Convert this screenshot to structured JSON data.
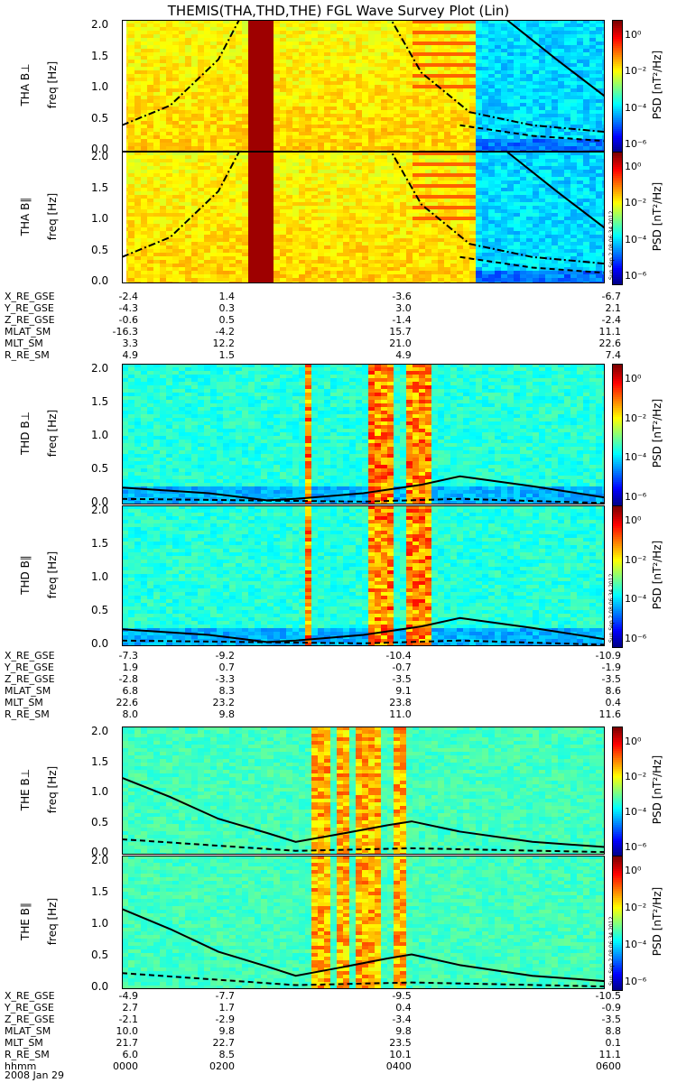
{
  "title": "THEMIS(THA,THD,THE) FGL Wave Survey Plot (Lin)",
  "yticks": [
    "2.0",
    "1.5",
    "1.0",
    "0.5",
    "0.0"
  ],
  "colorbar": {
    "ticks": [
      "10⁰",
      "10⁻²",
      "10⁻⁴",
      "10⁻⁶"
    ],
    "label": "PSD [nT²/Hz]"
  },
  "stamp": "Sun Sep  2 08:06:34 2012",
  "panels": [
    {
      "probe": "THA",
      "comp": "B⊥",
      "ylabel": "THA B⊥",
      "freq": "freq [Hz]"
    },
    {
      "probe": "THA",
      "comp": "B∥",
      "ylabel": "THA B∥",
      "freq": "freq [Hz]"
    },
    {
      "probe": "THD",
      "comp": "B⊥",
      "ylabel": "THD B⊥",
      "freq": "freq [Hz]"
    },
    {
      "probe": "THD",
      "comp": "B∥",
      "ylabel": "THD B∥",
      "freq": "freq [Hz]"
    },
    {
      "probe": "THE",
      "comp": "B⊥",
      "ylabel": "THE B⊥",
      "freq": "freq [Hz]"
    },
    {
      "probe": "THE",
      "comp": "B∥",
      "ylabel": "THE B∥",
      "freq": "freq [Hz]"
    }
  ],
  "ephemeris": [
    {
      "labels": [
        "X_RE_GSE",
        "Y_RE_GSE",
        "Z_RE_GSE",
        "MLAT_SM",
        "MLT_SM",
        "R_RE_SM"
      ],
      "cols": [
        [
          "-2.4",
          "-4.3",
          "-0.6",
          "-16.3",
          "3.3",
          "4.9"
        ],
        [
          "1.4",
          "0.3",
          "0.5",
          "-4.2",
          "12.2",
          "1.5"
        ],
        [
          "-3.6",
          "3.0",
          "-1.4",
          "15.7",
          "21.0",
          "4.9"
        ],
        [
          "-6.7",
          "2.1",
          "-2.4",
          "11.1",
          "22.6",
          "7.4"
        ]
      ]
    },
    {
      "labels": [
        "X_RE_GSE",
        "Y_RE_GSE",
        "Z_RE_GSE",
        "MLAT_SM",
        "MLT_SM",
        "R_RE_SM"
      ],
      "cols": [
        [
          "-7.3",
          "1.9",
          "-2.8",
          "6.8",
          "22.6",
          "8.0"
        ],
        [
          "-9.2",
          "0.7",
          "-3.3",
          "8.3",
          "23.2",
          "9.8"
        ],
        [
          "-10.4",
          "-0.7",
          "-3.5",
          "9.1",
          "23.8",
          "11.0"
        ],
        [
          "-10.9",
          "-1.9",
          "-3.5",
          "8.6",
          "0.4",
          "11.6"
        ]
      ]
    },
    {
      "labels": [
        "X_RE_GSE",
        "Y_RE_GSE",
        "Z_RE_GSE",
        "MLAT_SM",
        "MLT_SM",
        "R_RE_SM",
        "hhmm"
      ],
      "cols": [
        [
          "-4.9",
          "2.7",
          "-2.1",
          "10.0",
          "21.7",
          "6.0",
          "0000"
        ],
        [
          "-7.7",
          "1.7",
          "-2.9",
          "9.8",
          "22.7",
          "8.5",
          "0200"
        ],
        [
          "-9.5",
          "0.4",
          "-3.4",
          "9.8",
          "23.5",
          "10.1",
          "0400"
        ],
        [
          "-10.5",
          "-0.9",
          "-3.5",
          "8.8",
          "0.1",
          "11.1",
          "0600"
        ]
      ]
    }
  ],
  "date": "2008 Jan 29",
  "chart_data": {
    "type": "heatmap",
    "title": "THEMIS(THA,THD,THE) FGL Wave Survey Plot (Lin)",
    "xlabel": "hhmm",
    "x_ticks": [
      "0000",
      "0200",
      "0400",
      "0600"
    ],
    "ylabel": "freq [Hz]",
    "ylim": [
      0,
      2.0
    ],
    "color_scale": "log",
    "clim_label": "PSD [nT²/Hz]",
    "clim_ticks": [
      "10^0",
      "10^-2",
      "10^-4",
      "10^-6"
    ]
  }
}
